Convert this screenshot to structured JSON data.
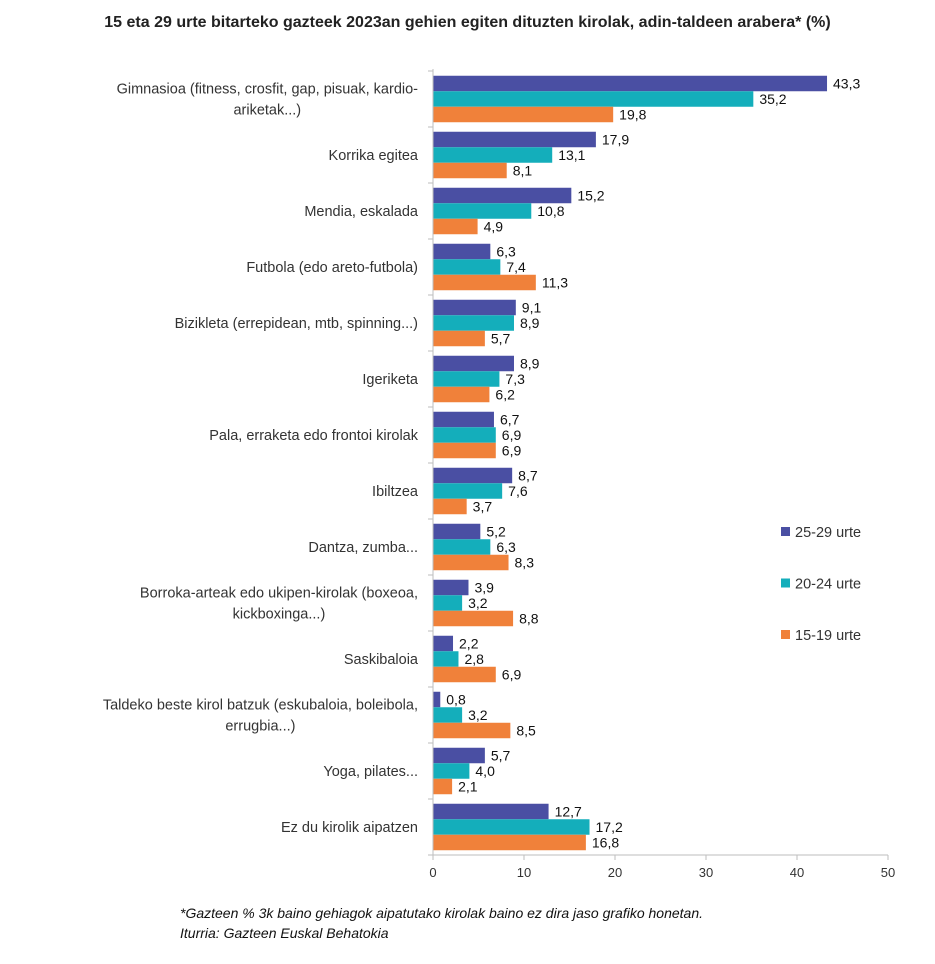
{
  "chart_data": {
    "type": "bar",
    "orientation": "horizontal",
    "title": "15 eta 29 urte bitarteko gazteek 2023an gehien egiten dituzten kirolak, adin-taldeen arabera*  (%)",
    "categories": [
      [
        "Gimnasioa (fitness, crosfit, gap, pisuak, kardio-",
        "ariketak...)"
      ],
      [
        "Korrika egitea"
      ],
      [
        "Mendia, eskalada"
      ],
      [
        "Futbola (edo areto-futbola)"
      ],
      [
        "Bizikleta (errepidean, mtb, spinning...)"
      ],
      [
        "Igeriketa"
      ],
      [
        "Pala, erraketa edo frontoi kirolak"
      ],
      [
        "Ibiltzea"
      ],
      [
        "Dantza, zumba..."
      ],
      [
        "Borroka-arteak edo ukipen-kirolak (boxeoa,",
        "kickboxinga...)"
      ],
      [
        "Saskibaloia"
      ],
      [
        "Taldeko beste kirol batzuk (eskubaloia, boleibola,",
        "errugbia...)"
      ],
      [
        "Yoga, pilates..."
      ],
      [
        "Ez du kirolik aipatzen"
      ]
    ],
    "series": [
      {
        "name": "25-29 urte",
        "color": "#4a4fa3",
        "values": [
          43.3,
          17.9,
          15.2,
          6.3,
          9.1,
          8.9,
          6.7,
          8.7,
          5.2,
          3.9,
          2.2,
          0.8,
          5.7,
          12.7
        ],
        "labels": [
          "43,3",
          "17,9",
          "15,2",
          "6,3",
          "9,1",
          "8,9",
          "6,7",
          "8,7",
          "5,2",
          "3,9",
          "2,2",
          "0,8",
          "5,7",
          "12,7"
        ]
      },
      {
        "name": "20-24 urte",
        "color": "#14aebb",
        "values": [
          35.2,
          13.1,
          10.8,
          7.4,
          8.9,
          7.3,
          6.9,
          7.6,
          6.3,
          3.2,
          2.8,
          3.2,
          4.0,
          17.2
        ],
        "labels": [
          "35,2",
          "13,1",
          "10,8",
          "7,4",
          "8,9",
          "7,3",
          "6,9",
          "7,6",
          "6,3",
          "3,2",
          "2,8",
          "3,2",
          "4,0",
          "17,2"
        ]
      },
      {
        "name": "15-19 urte",
        "color": "#f0813a",
        "values": [
          19.8,
          8.1,
          4.9,
          11.3,
          5.7,
          6.2,
          6.9,
          3.7,
          8.3,
          8.8,
          6.9,
          8.5,
          2.1,
          16.8
        ],
        "labels": [
          "19,8",
          "8,1",
          "4,9",
          "11,3",
          "5,7",
          "6,2",
          "6,9",
          "3,7",
          "8,3",
          "8,8",
          "6,9",
          "8,5",
          "2,1",
          "16,8"
        ]
      }
    ],
    "xlim": [
      0,
      50
    ],
    "xticks": [
      0,
      10,
      20,
      30,
      40,
      50
    ],
    "xlabel": "",
    "ylabel": "",
    "grid": false,
    "legend_position": "right"
  },
  "footnote": {
    "line1": "*Gazteen % 3k baino gehiagok aipatutako kirolak baino ez dira jaso grafiko honetan.",
    "line2": "Iturria: Gazteen Euskal Behatokia"
  }
}
